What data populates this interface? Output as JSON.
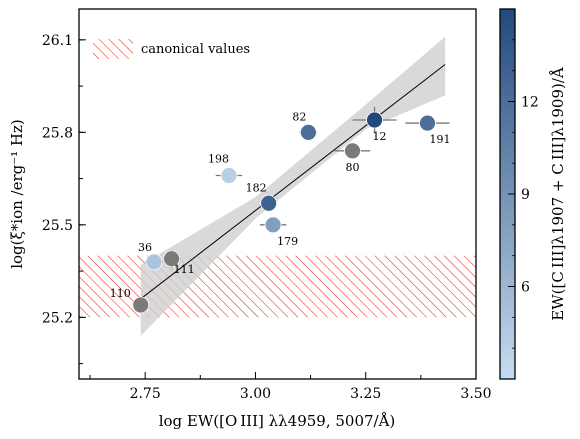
{
  "chart_data": {
    "type": "scatter",
    "title": "",
    "xlabel": "log EW([O III] λλ4959, 5007/Å)",
    "ylabel": "log(ξ*ion /erg⁻¹ Hz)",
    "xlim": [
      2.6,
      3.5
    ],
    "ylim": [
      25.0,
      26.2
    ],
    "x_ticks": [
      "2.75",
      "3.00",
      "3.25",
      "3.50"
    ],
    "y_ticks": [
      "25.2",
      "25.5",
      "25.8",
      "26.1"
    ],
    "colorbar": {
      "label": "EW([C III]λ1907 + C III]λ1909)/Å",
      "range": [
        3,
        15
      ],
      "ticks": [
        "6",
        "9",
        "12"
      ],
      "color_low": "#c6dcf0",
      "color_high": "#23497c"
    },
    "legend": {
      "label": "canonical values",
      "placement": "top-left"
    },
    "canonical_band": {
      "ymin": 25.2,
      "ymax": 25.4,
      "color": "#e8291c"
    },
    "fit_line": {
      "x": [
        2.74,
        3.43
      ],
      "y": [
        25.26,
        26.02
      ]
    },
    "fit_band": {
      "x": [
        2.74,
        3.0,
        3.25,
        3.43
      ],
      "lower": [
        25.14,
        25.52,
        25.81,
        25.92
      ],
      "upper": [
        25.37,
        25.59,
        25.89,
        26.11
      ]
    },
    "points": [
      {
        "id": "110",
        "x": 2.74,
        "y": 25.24,
        "xerr": 0.0,
        "cval": null
      },
      {
        "id": "36",
        "x": 2.77,
        "y": 25.38,
        "xerr": 0.02,
        "cval": 5.0
      },
      {
        "id": "111",
        "x": 2.81,
        "y": 25.39,
        "xerr": 0.02,
        "cval": null
      },
      {
        "id": "198",
        "x": 2.94,
        "y": 25.66,
        "xerr": 0.03,
        "cval": 4.0
      },
      {
        "id": "182",
        "x": 3.03,
        "y": 25.57,
        "xerr": 0.0,
        "cval": 13.0
      },
      {
        "id": "179",
        "x": 3.04,
        "y": 25.5,
        "xerr": 0.03,
        "cval": 8.0
      },
      {
        "id": "82",
        "x": 3.12,
        "y": 25.8,
        "xerr": 0.02,
        "cval": 12.0
      },
      {
        "id": "80",
        "x": 3.22,
        "y": 25.74,
        "xerr": 0.04,
        "cval": null
      },
      {
        "id": "12",
        "x": 3.27,
        "y": 25.84,
        "xerr": 0.05,
        "cval": 15.0
      },
      {
        "id": "191",
        "x": 3.39,
        "y": 25.83,
        "xerr": 0.05,
        "cval": 12.0
      }
    ],
    "grey_point_color": "#7a7a7a"
  }
}
